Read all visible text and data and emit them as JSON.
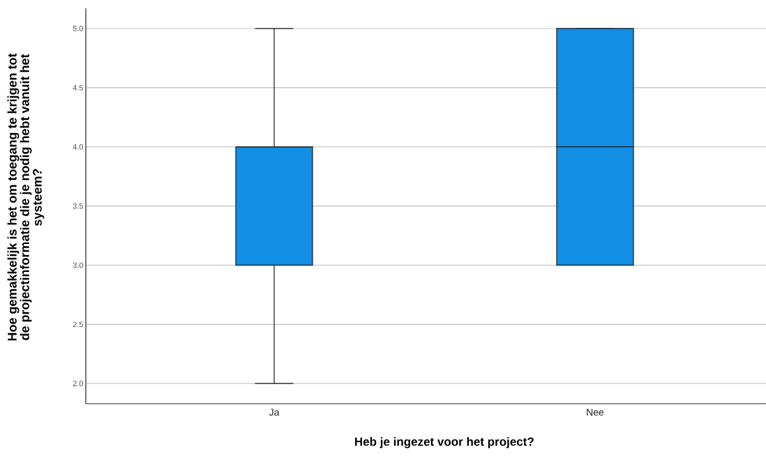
{
  "chart_data": {
    "type": "box",
    "xlabel": "Heb je ingezet voor het project?",
    "ylabel": "Hoe gemakkelijk is het om toegang te krijgen tot de projectinformatie die je nodig hebt vanuit het systeem?",
    "categories": [
      "Ja",
      "Nee"
    ],
    "color": "#128ee5",
    "boxes": [
      {
        "low": 2,
        "q1": 3,
        "median": 4,
        "q3": 4,
        "high": 5
      },
      {
        "low": 3,
        "q1": 3,
        "median": 4,
        "q3": 5,
        "high": 5
      }
    ],
    "ylim": [
      1.83,
      5.17
    ],
    "yticks": [
      {
        "value": 2,
        "label": "2.0"
      },
      2.5,
      {
        "value": 3,
        "label": "3.0"
      },
      3.5,
      {
        "value": 4,
        "label": "4.0"
      },
      4.5,
      {
        "value": 5,
        "label": "5.0"
      }
    ],
    "grid": "y"
  }
}
